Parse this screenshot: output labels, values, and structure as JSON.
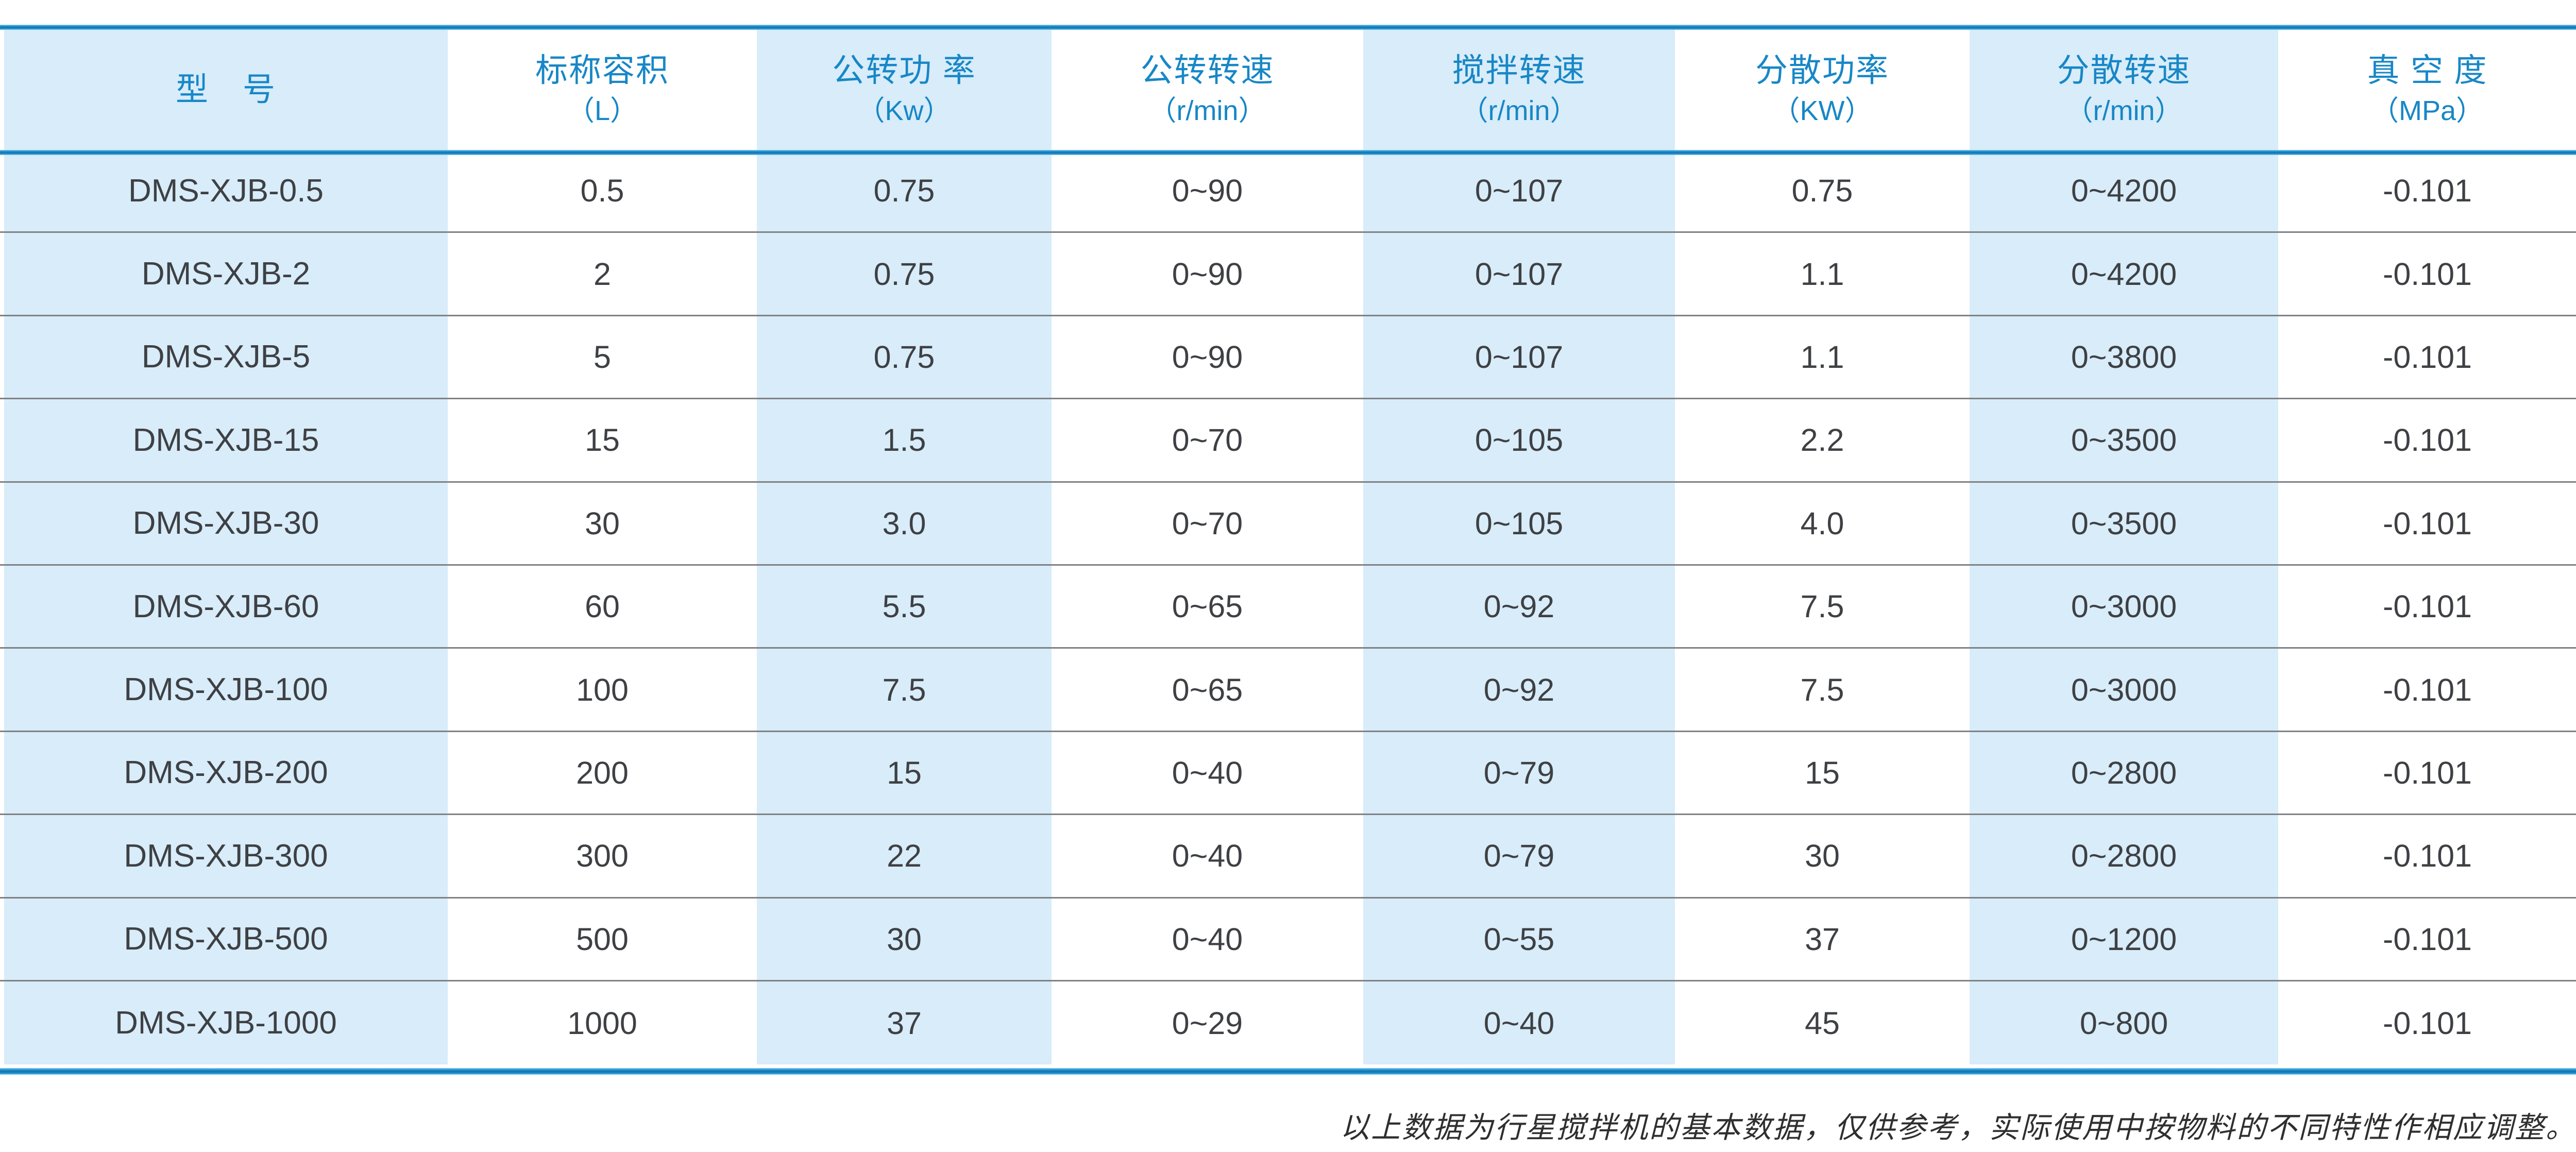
{
  "table": {
    "columns": [
      {
        "title": "型　号",
        "unit": ""
      },
      {
        "title": "标称容积",
        "unit": "（L）"
      },
      {
        "title": "公转功 率",
        "unit": "（Kw）"
      },
      {
        "title": "公转转速",
        "unit": "（r/min）"
      },
      {
        "title": "搅拌转速",
        "unit": "（r/min）"
      },
      {
        "title": "分散功率",
        "unit": "（KW）"
      },
      {
        "title": "分散转速",
        "unit": "（r/min）"
      },
      {
        "title": "真 空 度",
        "unit": "（MPa）"
      }
    ],
    "rows": [
      [
        "DMS-XJB-0.5",
        "0.5",
        "0.75",
        "0~90",
        "0~107",
        "0.75",
        "0~4200",
        "-0.101"
      ],
      [
        "DMS-XJB-2",
        "2",
        "0.75",
        "0~90",
        "0~107",
        "1.1",
        "0~4200",
        "-0.101"
      ],
      [
        "DMS-XJB-5",
        "5",
        "0.75",
        "0~90",
        "0~107",
        "1.1",
        "0~3800",
        "-0.101"
      ],
      [
        "DMS-XJB-15",
        "15",
        "1.5",
        "0~70",
        "0~105",
        "2.2",
        "0~3500",
        "-0.101"
      ],
      [
        "DMS-XJB-30",
        "30",
        "3.0",
        "0~70",
        "0~105",
        "4.0",
        "0~3500",
        "-0.101"
      ],
      [
        "DMS-XJB-60",
        "60",
        "5.5",
        "0~65",
        "0~92",
        "7.5",
        "0~3000",
        "-0.101"
      ],
      [
        "DMS-XJB-100",
        "100",
        "7.5",
        "0~65",
        "0~92",
        "7.5",
        "0~3000",
        "-0.101"
      ],
      [
        "DMS-XJB-200",
        "200",
        "15",
        "0~40",
        "0~79",
        "15",
        "0~2800",
        "-0.101"
      ],
      [
        "DMS-XJB-300",
        "300",
        "22",
        "0~40",
        "0~79",
        "30",
        "0~2800",
        "-0.101"
      ],
      [
        "DMS-XJB-500",
        "500",
        "30",
        "0~40",
        "0~55",
        "37",
        "0~1200",
        "-0.101"
      ],
      [
        "DMS-XJB-1000",
        "1000",
        "37",
        "0~29",
        "0~40",
        "45",
        "0~800",
        "-0.101"
      ]
    ]
  },
  "footer": {
    "note": "以上数据为行星搅拌机的基本数据，仅供参考，实际使用中按物料的不同特性作相应调整。"
  },
  "colors": {
    "rule_blue": "#1e8fcd",
    "header_text_blue": "#1787c7",
    "stripe_light_blue": "#d8ecf9",
    "body_text": "#3e4044",
    "row_separator_gray": "#7f8184"
  }
}
